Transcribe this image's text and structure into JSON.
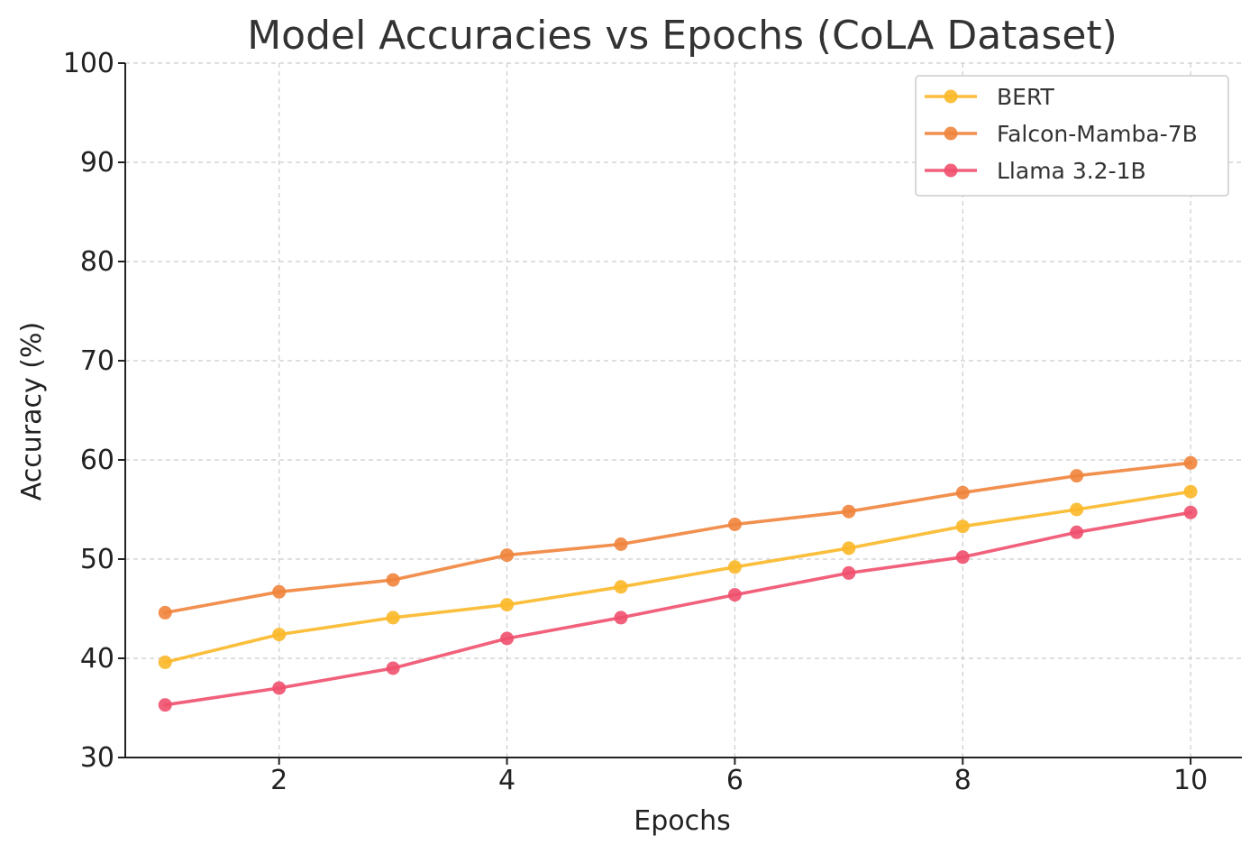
{
  "chart_data": {
    "type": "line",
    "title": "Model Accuracies vs Epochs (CoLA Dataset)",
    "xlabel": "Epochs",
    "ylabel": "Accuracy (%)",
    "x": [
      1,
      2,
      3,
      4,
      5,
      6,
      7,
      8,
      9,
      10
    ],
    "xlim": [
      0.65,
      10.45
    ],
    "ylim": [
      30,
      100
    ],
    "xticks": [
      2,
      4,
      6,
      8,
      10
    ],
    "yticks": [
      30,
      40,
      50,
      60,
      70,
      80,
      90,
      100
    ],
    "grid": true,
    "legend_position": "top-right",
    "series": [
      {
        "name": "BERT",
        "color": "#fbb829",
        "values": [
          39.6,
          42.4,
          44.1,
          45.4,
          47.2,
          49.2,
          51.1,
          53.3,
          55.0,
          56.8
        ]
      },
      {
        "name": "Falcon-Mamba-7B",
        "color": "#f0843c",
        "values": [
          44.6,
          46.7,
          47.9,
          50.4,
          51.5,
          53.5,
          54.8,
          56.7,
          58.4,
          59.7
        ]
      },
      {
        "name": "Llama 3.2-1B",
        "color": "#f0506e",
        "values": [
          35.3,
          37.0,
          39.0,
          42.0,
          44.1,
          46.4,
          48.6,
          50.2,
          52.7,
          54.7
        ]
      }
    ]
  }
}
